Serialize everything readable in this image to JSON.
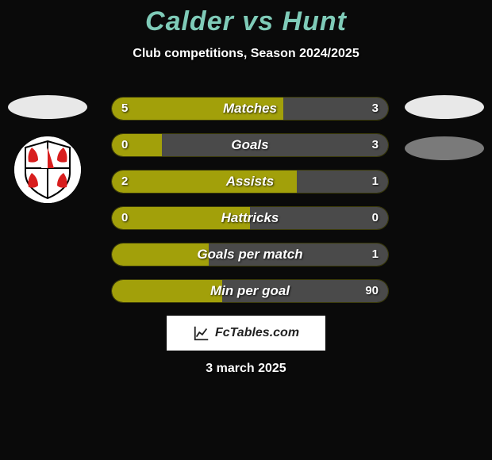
{
  "title": {
    "text": "Calder vs Hunt",
    "color": "#7fcbb8",
    "fontsize": 34
  },
  "subtitle": "Club competitions, Season 2024/2025",
  "colors": {
    "left": "#a2a00a",
    "right": "#4a4a4a",
    "background": "#0a0a0a",
    "bar_bg": "#2a2a2a",
    "avatar_left": "#e8e8e8",
    "avatar_right1": "#e8e8e8",
    "avatar_right2": "#7a7a7a"
  },
  "bars": [
    {
      "label": "Matches",
      "left_val": "5",
      "right_val": "3",
      "left_pct": 62,
      "right_pct": 38
    },
    {
      "label": "Goals",
      "left_val": "0",
      "right_val": "3",
      "left_pct": 18,
      "right_pct": 82
    },
    {
      "label": "Assists",
      "left_val": "2",
      "right_val": "1",
      "left_pct": 67,
      "right_pct": 33
    },
    {
      "label": "Hattricks",
      "left_val": "0",
      "right_val": "0",
      "left_pct": 50,
      "right_pct": 50
    },
    {
      "label": "Goals per match",
      "left_val": "",
      "right_val": "1",
      "left_pct": 35,
      "right_pct": 65
    },
    {
      "label": "Min per goal",
      "left_val": "",
      "right_val": "90",
      "left_pct": 40,
      "right_pct": 60
    }
  ],
  "footer": {
    "label": "FcTables.com"
  },
  "date": "3 march 2025",
  "crest": {
    "bg": "#ffffff",
    "red": "#d81e1e",
    "line": "#000000"
  }
}
